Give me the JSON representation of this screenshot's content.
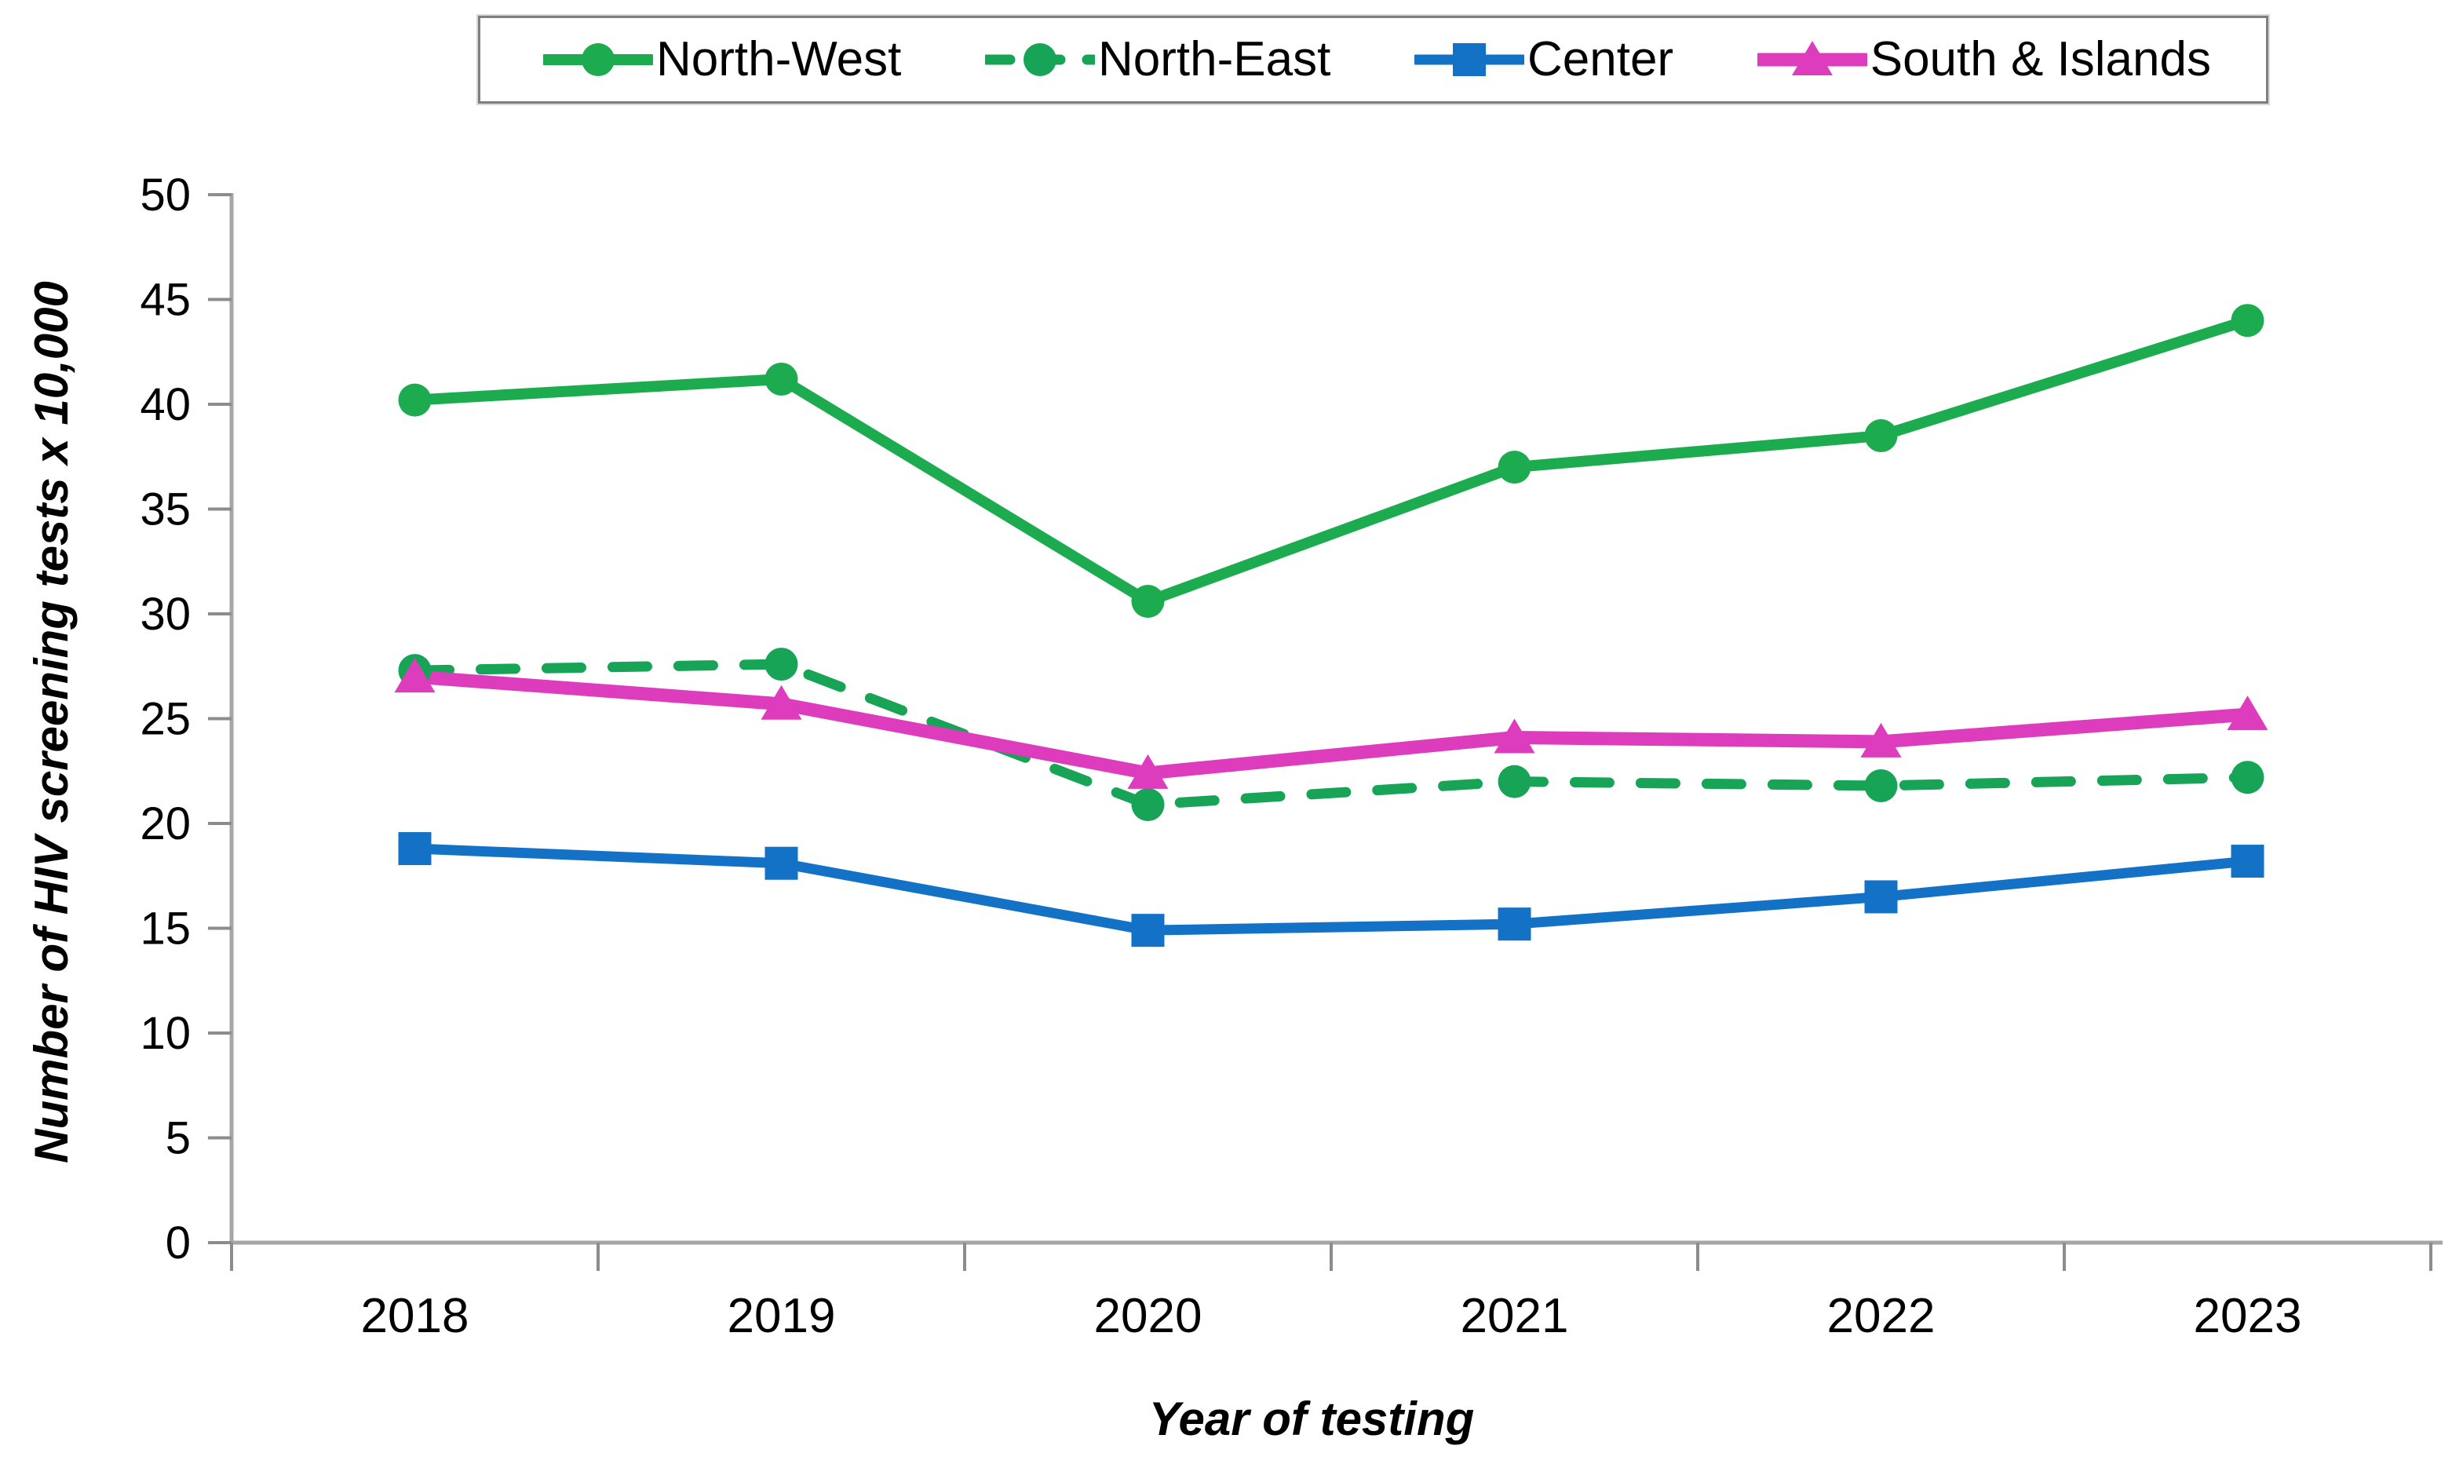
{
  "chart_data": {
    "type": "line",
    "title": "",
    "categories": [
      "2018",
      "2019",
      "2020",
      "2021",
      "2022",
      "2023"
    ],
    "series": [
      {
        "name": "North-West",
        "values": [
          40.2,
          41.2,
          30.6,
          37.0,
          38.5,
          44.0
        ],
        "color": "#1dab4f",
        "marker": "circle",
        "line": "solid",
        "width": 14
      },
      {
        "name": "North-East",
        "values": [
          27.3,
          27.6,
          20.9,
          22.0,
          21.8,
          22.2
        ],
        "color": "#17a457",
        "marker": "circle",
        "line": "dashed",
        "width": 13
      },
      {
        "name": "Center",
        "values": [
          18.8,
          18.1,
          14.9,
          15.2,
          16.5,
          18.2
        ],
        "color": "#1371c6",
        "marker": "square",
        "line": "solid",
        "width": 13
      },
      {
        "name": "South & Islands",
        "values": [
          27.0,
          25.7,
          22.4,
          24.1,
          23.9,
          25.2
        ],
        "color": "#dd3cbd",
        "marker": "triangle",
        "line": "solid",
        "width": 17
      }
    ],
    "xlabel": "Year of testing",
    "ylabel": "Number of HIV screening tests x 10,000",
    "ylim": [
      0,
      50
    ],
    "ytick_step": 5,
    "grid": false,
    "legend_position": "top",
    "colors": {
      "axis_line": "#a6a6a6",
      "tick_mark": "#8c8c8c",
      "text": "#000000",
      "legend_border": "#7f7f7f",
      "background": "#ffffff"
    }
  }
}
